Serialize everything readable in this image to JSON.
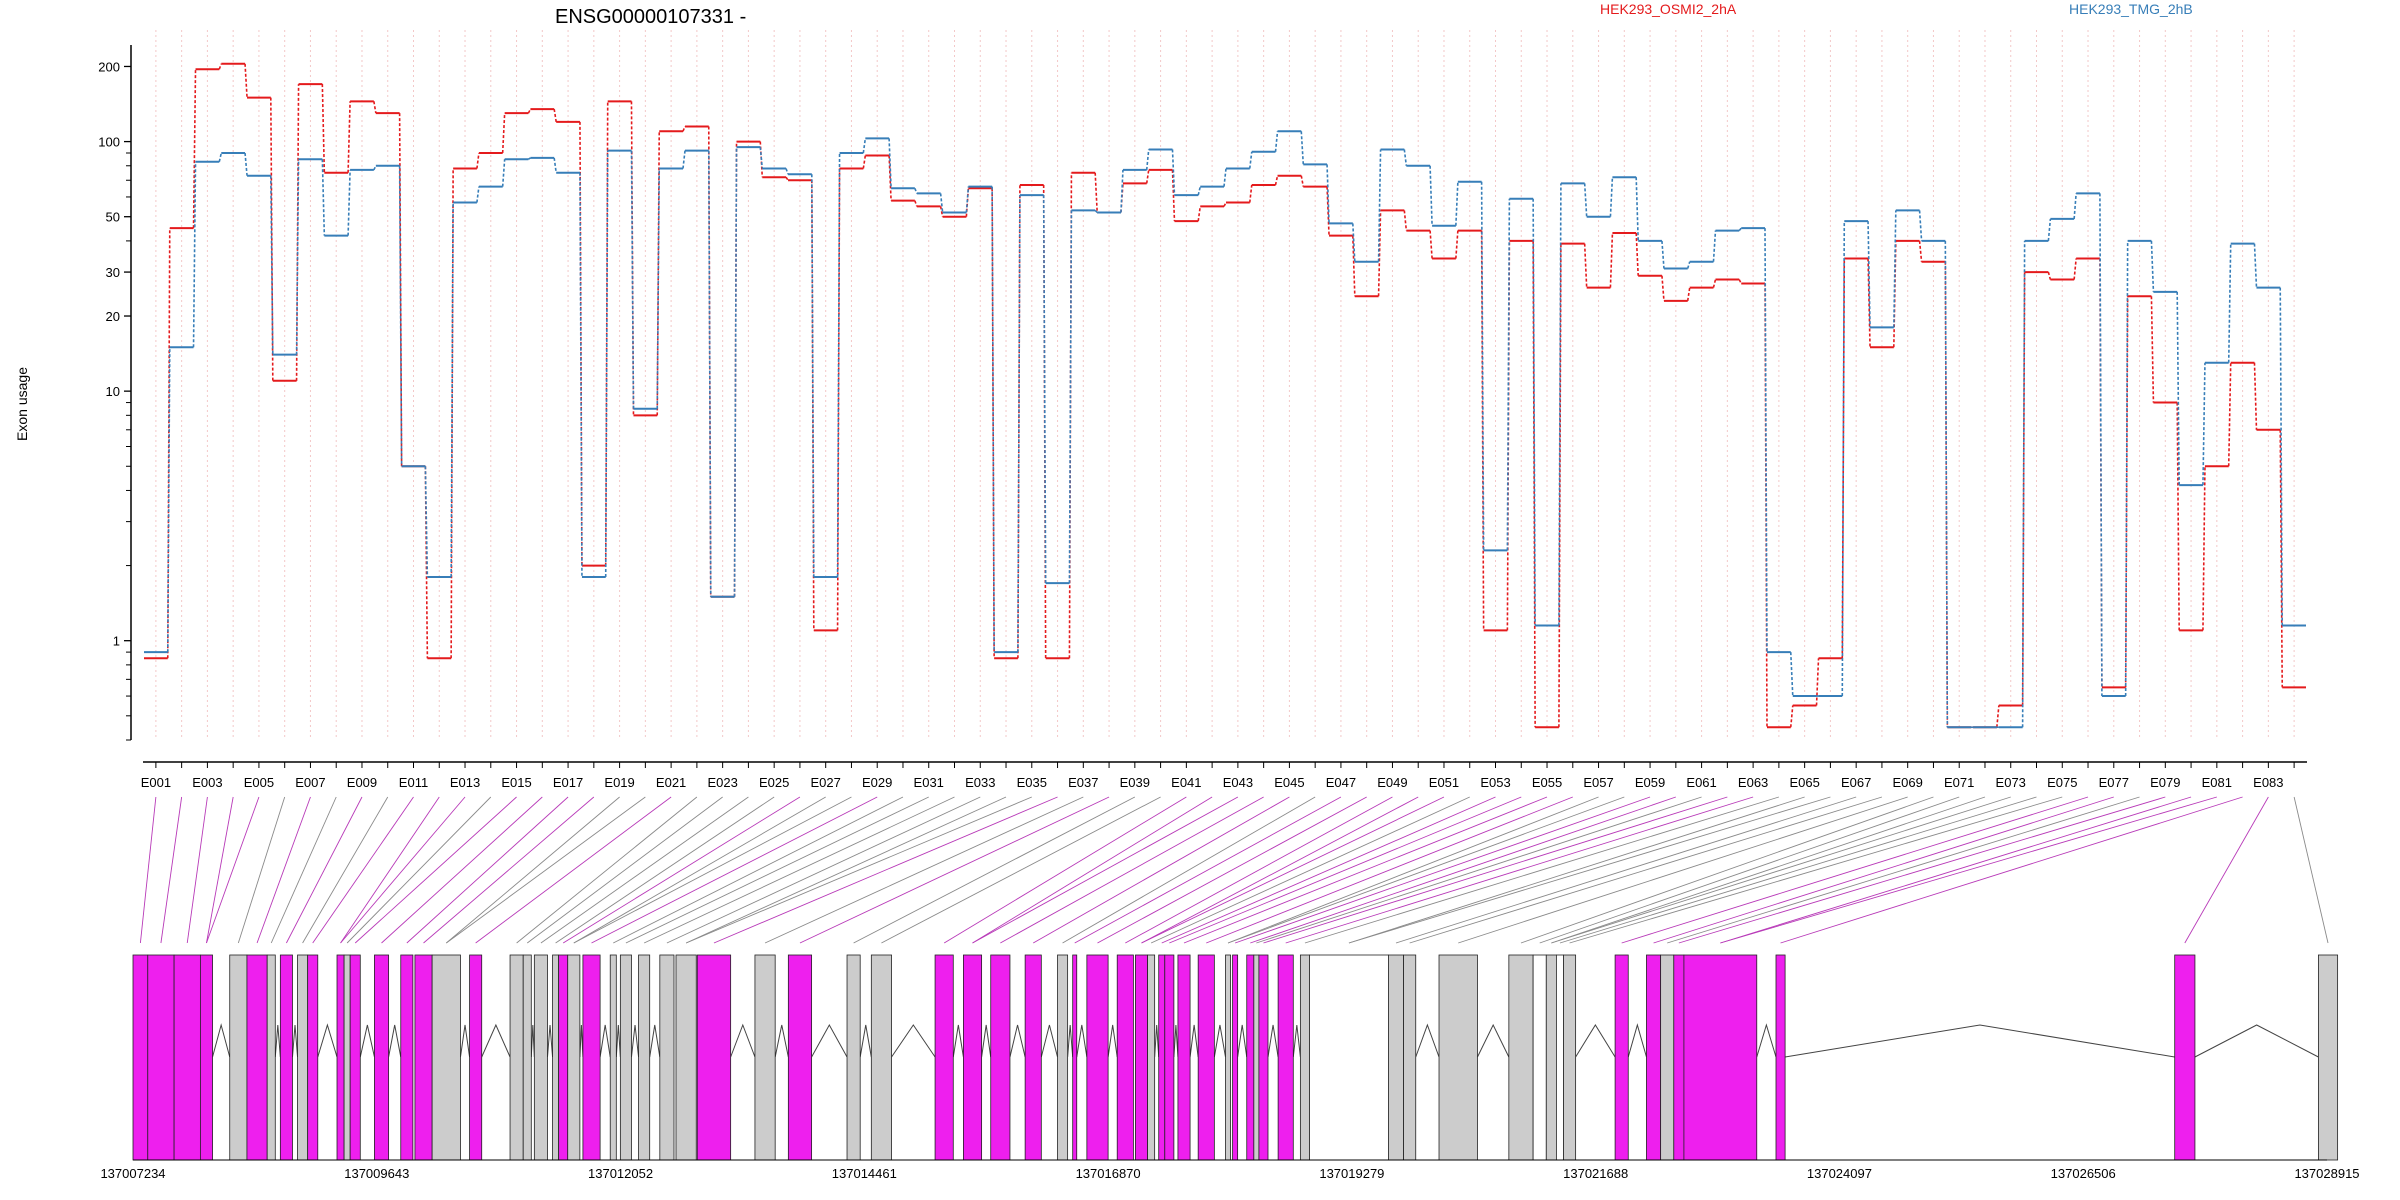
{
  "chart_data": {
    "type": "line",
    "title": "ENSG00000107331 -",
    "ylabel": "Exon usage",
    "yscale": "log",
    "ylim": [
      0.4,
      280
    ],
    "yticks": [
      1,
      10,
      20,
      30,
      50,
      100,
      200
    ],
    "grid": "vertical dotted lines at each exon bin",
    "legend": "top-right",
    "series": [
      {
        "name": "HEK293_OSMI2_2hA",
        "color": "#e41a1c",
        "values": [
          0.85,
          45,
          195,
          205,
          150,
          11,
          170,
          75,
          145,
          130,
          5,
          0.85,
          78,
          90,
          130,
          135,
          120,
          2,
          145,
          8,
          110,
          115,
          1.5,
          100,
          72,
          70,
          1.1,
          78,
          88,
          58,
          55,
          50,
          65,
          0.85,
          67,
          0.85,
          75,
          52,
          68,
          77,
          48,
          55,
          57,
          67,
          73,
          66,
          42,
          24,
          53,
          44,
          34,
          44,
          1.1,
          40,
          0.45,
          39,
          26,
          43,
          29,
          23,
          26,
          28,
          27,
          0.45,
          0.55,
          0.85,
          34,
          15,
          40,
          33,
          0.45,
          0.45,
          0.55,
          30,
          28,
          34,
          0.65,
          24,
          9,
          1.1,
          5,
          13,
          7,
          0.65
        ]
      },
      {
        "name": "HEK293_TMG_2hB",
        "color": "#377eb8",
        "values": [
          0.9,
          15,
          83,
          90,
          73,
          14,
          85,
          42,
          77,
          80,
          5,
          1.8,
          57,
          66,
          85,
          86,
          75,
          1.8,
          92,
          8.5,
          78,
          92,
          1.5,
          95,
          78,
          74,
          1.8,
          90,
          103,
          65,
          62,
          52,
          66,
          0.9,
          61,
          1.7,
          53,
          52,
          77,
          93,
          61,
          66,
          78,
          91,
          110,
          81,
          47,
          33,
          93,
          80,
          46,
          69,
          2.3,
          59,
          1.15,
          68,
          50,
          72,
          40,
          31,
          33,
          44,
          45,
          0.9,
          0.6,
          0.6,
          48,
          18,
          53,
          40,
          0.45,
          0.45,
          0.45,
          40,
          49,
          62,
          0.6,
          40,
          25,
          4.2,
          13,
          39,
          26,
          1.15
        ]
      }
    ],
    "exon_ids": [
      "E001",
      "E002",
      "E003",
      "E004",
      "E005",
      "E006",
      "E007",
      "E008",
      "E009",
      "E010",
      "E011",
      "E012",
      "E013",
      "E014",
      "E015",
      "E016",
      "E017",
      "E018",
      "E019",
      "E020",
      "E021",
      "E022",
      "E023",
      "E024",
      "E025",
      "E026",
      "E027",
      "E028",
      "E029",
      "E030",
      "E031",
      "E032",
      "E033",
      "E034",
      "E035",
      "E036",
      "E037",
      "E038",
      "E039",
      "E040",
      "E041",
      "E042",
      "E043",
      "E044",
      "E045",
      "E046",
      "E047",
      "E048",
      "E049",
      "E050",
      "E051",
      "E052",
      "E053",
      "E054",
      "E055",
      "E056",
      "E057",
      "E058",
      "E059",
      "E060",
      "E061",
      "E062",
      "E063",
      "E064",
      "E065",
      "E066",
      "E067",
      "E068",
      "E069",
      "E070",
      "E071",
      "E072",
      "E073",
      "E074",
      "E075",
      "E076",
      "E077",
      "E078",
      "E079",
      "E080",
      "E081",
      "E082",
      "E083",
      "E084"
    ],
    "x_labels": [
      "E001",
      "E003",
      "E005",
      "E007",
      "E009",
      "E011",
      "E013",
      "E015",
      "E017",
      "E019",
      "E021",
      "E023",
      "E025",
      "E027",
      "E029",
      "E031",
      "E033",
      "E035",
      "E037",
      "E039",
      "E041",
      "E043",
      "E045",
      "E047",
      "E049",
      "E051",
      "E053",
      "E055",
      "E057",
      "E059",
      "E061",
      "E063",
      "E065",
      "E067",
      "E069",
      "E071",
      "E073",
      "E075",
      "E077",
      "E079",
      "E081",
      "E083"
    ],
    "genomic_ticks": [
      "137007234",
      "137009643",
      "137012052",
      "137014461",
      "137016870",
      "137019279",
      "137021688",
      "137024097",
      "137026506",
      "137028915"
    ],
    "genomic_range": [
      137007234,
      137028915
    ],
    "gene_model": {
      "highlight_color": "#ee1fee",
      "base_color": "#cccccc",
      "exons": [
        [
          137007234,
          137007380,
          1
        ],
        [
          137007380,
          137007640,
          1
        ],
        [
          137007640,
          137007900,
          1
        ],
        [
          137007900,
          137008020,
          1
        ],
        [
          137008190,
          137008360,
          0
        ],
        [
          137008360,
          137008560,
          1
        ],
        [
          137008560,
          137008640,
          0
        ],
        [
          137008690,
          137008810,
          1
        ],
        [
          137008860,
          137008960,
          0
        ],
        [
          137008960,
          137009060,
          1
        ],
        [
          137009250,
          137009320,
          1
        ],
        [
          137009320,
          137009380,
          0
        ],
        [
          137009380,
          137009480,
          1
        ],
        [
          137009620,
          137009760,
          1
        ],
        [
          137009880,
          137010000,
          1
        ],
        [
          137010020,
          137010190,
          1
        ],
        [
          137010190,
          137010470,
          0
        ],
        [
          137010560,
          137010680,
          1
        ],
        [
          137010960,
          137011090,
          0
        ],
        [
          137011090,
          137011170,
          0
        ],
        [
          137011200,
          137011330,
          0
        ],
        [
          137011380,
          137011440,
          0
        ],
        [
          137011440,
          137011530,
          1
        ],
        [
          137011530,
          137011650,
          0
        ],
        [
          137011680,
          137011850,
          1
        ],
        [
          137011950,
          137012010,
          0
        ],
        [
          137012050,
          137012160,
          0
        ],
        [
          137012230,
          137012340,
          0
        ],
        [
          137012440,
          137012580,
          0
        ],
        [
          137012600,
          137012800,
          0
        ],
        [
          137012810,
          137013140,
          1
        ],
        [
          137013380,
          137013580,
          0
        ],
        [
          137013710,
          137013940,
          1
        ],
        [
          137014290,
          137014420,
          0
        ],
        [
          137014530,
          137014730,
          0
        ],
        [
          137015160,
          137015340,
          1
        ],
        [
          137015440,
          137015620,
          1
        ],
        [
          137015710,
          137015900,
          1
        ],
        [
          137016050,
          137016210,
          1
        ],
        [
          137016370,
          137016470,
          0
        ],
        [
          137016520,
          137016560,
          1
        ],
        [
          137016660,
          137016870,
          1
        ],
        [
          137016960,
          137017120,
          1
        ],
        [
          137017140,
          137017260,
          1
        ],
        [
          137017260,
          137017330,
          0
        ],
        [
          137017370,
          137017430,
          1
        ],
        [
          137017430,
          137017520,
          1
        ],
        [
          137017560,
          137017680,
          1
        ],
        [
          137017760,
          137017920,
          1
        ],
        [
          137018030,
          137018080,
          0
        ],
        [
          137018100,
          137018150,
          1
        ],
        [
          137018240,
          137018310,
          1
        ],
        [
          137018310,
          137018360,
          0
        ],
        [
          137018360,
          137018450,
          1
        ],
        [
          137018550,
          137018700,
          1
        ],
        [
          137018770,
          137018860,
          0
        ],
        [
          137018860,
          137019640,
          2
        ],
        [
          137019640,
          137019790,
          0
        ],
        [
          137019790,
          137019910,
          0
        ],
        [
          137020140,
          137020520,
          0
        ],
        [
          137020830,
          137021070,
          0
        ],
        [
          137021070,
          137021200,
          2
        ],
        [
          137021200,
          137021300,
          0
        ],
        [
          137021300,
          137021370,
          2
        ],
        [
          137021370,
          137021490,
          0
        ],
        [
          137021880,
          137022010,
          1
        ],
        [
          137022190,
          137022330,
          1
        ],
        [
          137022330,
          137022460,
          0
        ],
        [
          137022460,
          137022560,
          1
        ],
        [
          137022560,
          137023280,
          1
        ],
        [
          137023470,
          137023560,
          1
        ],
        [
          137027410,
          137027610,
          1
        ],
        [
          137028830,
          137029020,
          0
        ]
      ]
    }
  }
}
